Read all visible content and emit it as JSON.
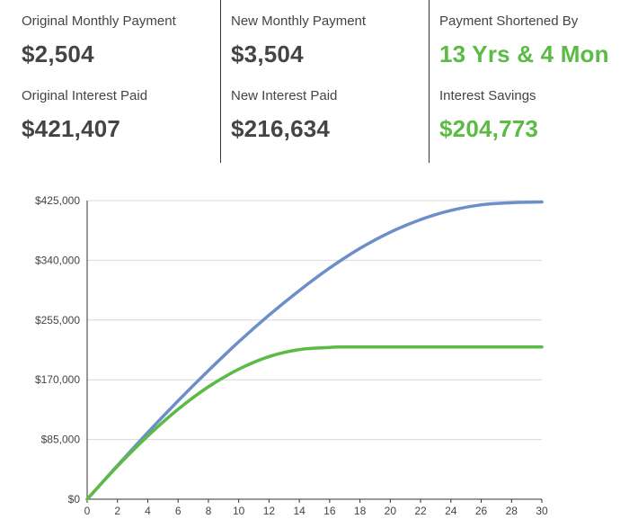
{
  "summary": {
    "original_monthly_label": "Original Monthly Payment",
    "original_monthly_value": "$2,504",
    "original_interest_label": "Original Interest Paid",
    "original_interest_value": "$421,407",
    "new_monthly_label": "New Monthly Payment",
    "new_monthly_value": "$3,504",
    "new_interest_label": "New Interest Paid",
    "new_interest_value": "$216,634",
    "shortened_label": "Payment Shortened By",
    "shortened_value": "13 Yrs & 4 Mon",
    "savings_label": "Interest Savings",
    "savings_value": "$204,773"
  },
  "colors": {
    "accent_green": "#5bbb45",
    "series_blue": "#6c8ec9",
    "series_green": "#5bbb45",
    "grid": "#d9d9d9"
  },
  "chart_data": {
    "type": "line",
    "title": "",
    "xlabel": "",
    "ylabel": "",
    "xlim": [
      0,
      30
    ],
    "ylim": [
      0,
      425000
    ],
    "x_ticks": [
      "0",
      "2",
      "4",
      "6",
      "8",
      "10",
      "12",
      "14",
      "16",
      "18",
      "20",
      "22",
      "24",
      "26",
      "28",
      "30"
    ],
    "y_ticks": [
      "$0",
      "$85,000",
      "$170,000",
      "$255,000",
      "$340,000",
      "$425,000"
    ],
    "grid": true,
    "series": [
      {
        "color": "#6c8ec9",
        "x": [
          0,
          2,
          4,
          6,
          8,
          10,
          12,
          14,
          16,
          18,
          20,
          22,
          24,
          26,
          28,
          30
        ],
        "values": [
          0,
          48000,
          95000,
          140000,
          183000,
          224000,
          262000,
          297000,
          329000,
          357000,
          380000,
          398000,
          411000,
          419000,
          422000,
          423000
        ]
      },
      {
        "color": "#5bbb45",
        "x": [
          0,
          2,
          4,
          6,
          8,
          10,
          12,
          14,
          16,
          16.8,
          18,
          20,
          22,
          24,
          26,
          28,
          30
        ],
        "values": [
          0,
          47000,
          90000,
          128000,
          160000,
          185000,
          203000,
          213000,
          216000,
          216634,
          216634,
          216634,
          216634,
          216634,
          216634,
          216634,
          216634
        ]
      }
    ]
  }
}
